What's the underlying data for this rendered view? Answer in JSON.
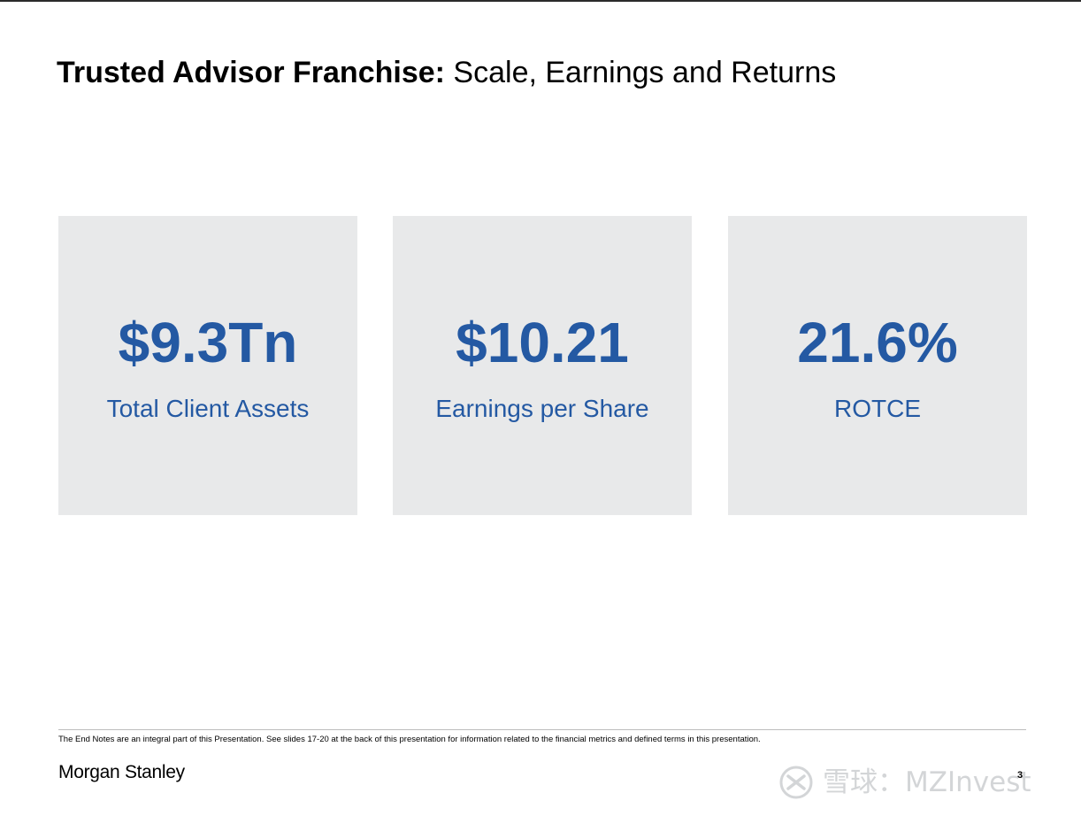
{
  "slide": {
    "title_bold": "Trusted Advisor Franchise:",
    "title_regular": "Scale, Earnings and Returns"
  },
  "metrics": [
    {
      "value": "$9.3Tn",
      "label": "Total Client Assets"
    },
    {
      "value": "$10.21",
      "label": "Earnings per Share"
    },
    {
      "value": "21.6%",
      "label": "ROTCE"
    }
  ],
  "footer": {
    "endnote": "The End Notes are an integral part of this Presentation. See slides 17-20 at the back of this presentation for information related to the financial metrics and defined terms in this presentation.",
    "logo_text": "Morgan Stanley",
    "page_number": "3"
  },
  "watermark": {
    "text": "雪球：MZInvest",
    "icon": "snowball-logo-icon"
  },
  "colors": {
    "accent": "#2459a3",
    "card_background": "#e8e9ea",
    "text": "#000000"
  }
}
